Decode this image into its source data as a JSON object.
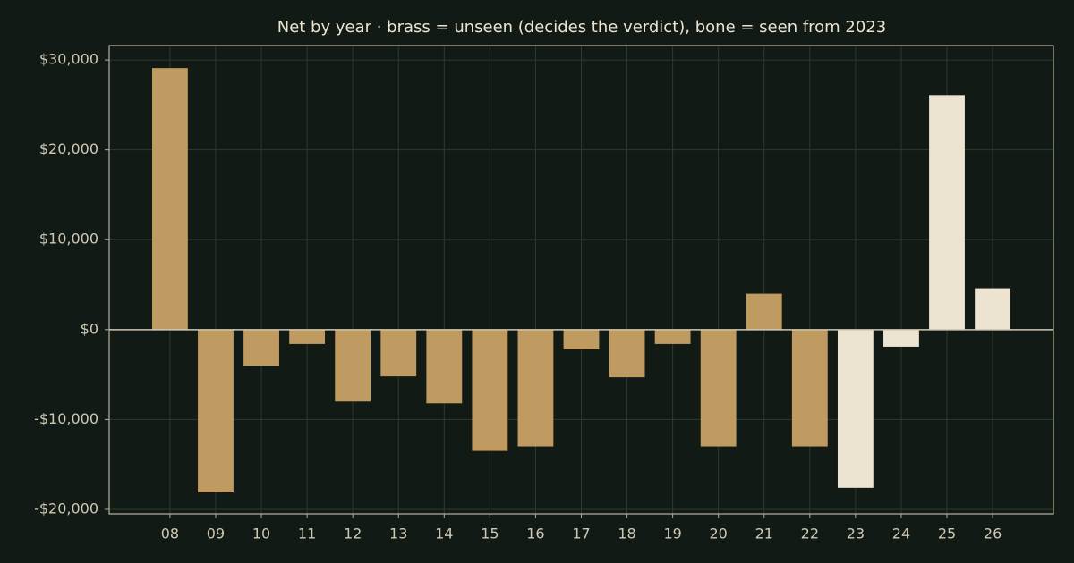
{
  "chart_data": {
    "type": "bar",
    "title": "Net by year  ·  brass = unseen (decides the verdict), bone = seen from 2023",
    "categories": [
      "08",
      "09",
      "10",
      "11",
      "12",
      "13",
      "14",
      "15",
      "16",
      "17",
      "18",
      "19",
      "20",
      "21",
      "22",
      "23",
      "24",
      "25",
      "26"
    ],
    "values": [
      29100,
      -18100,
      -4000,
      -1600,
      -8000,
      -5200,
      -8200,
      -13500,
      -13000,
      -2200,
      -5300,
      -1600,
      -13000,
      4000,
      -13000,
      -17600,
      -1900,
      26100,
      4600
    ],
    "colors": [
      "#bf9b61",
      "#bf9b61",
      "#bf9b61",
      "#bf9b61",
      "#bf9b61",
      "#bf9b61",
      "#bf9b61",
      "#bf9b61",
      "#bf9b61",
      "#bf9b61",
      "#bf9b61",
      "#bf9b61",
      "#bf9b61",
      "#bf9b61",
      "#bf9b61",
      "#ede3d1",
      "#ede3d1",
      "#ede3d1",
      "#ede3d1"
    ],
    "ylim": [
      -20500,
      31600
    ],
    "yticks": [
      {
        "value": -20000,
        "label": "-$20,000"
      },
      {
        "value": -10000,
        "label": "-$10,000"
      },
      {
        "value": 0,
        "label": "$0"
      },
      {
        "value": 10000,
        "label": "$10,000"
      },
      {
        "value": 20000,
        "label": "$20,000"
      },
      {
        "value": 30000,
        "label": "$30,000"
      }
    ],
    "grid": true
  }
}
